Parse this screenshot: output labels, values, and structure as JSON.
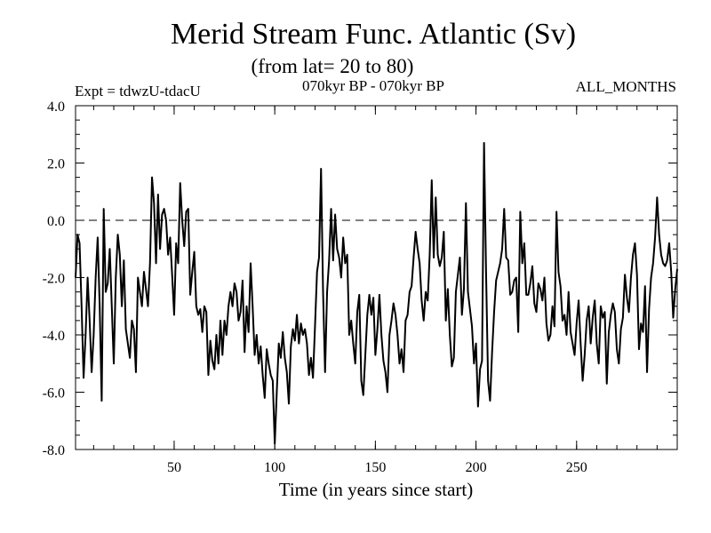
{
  "chart_data": {
    "type": "line",
    "title": "Merid Stream Func. Atlantic (Sv)",
    "subtitle": "(from lat= 20 to 80)",
    "experiment_label": "Expt = tdwzU-tdacU",
    "period_label": "070kyr BP - 070kyr BP",
    "season_label": "ALL_MONTHS",
    "xlabel": "Time (in years since start)",
    "ylabel": "",
    "xlim": [
      1,
      300
    ],
    "ylim": [
      -8.0,
      4.0
    ],
    "xticks": [
      50,
      100,
      150,
      200,
      250
    ],
    "xtick_labels": [
      "50",
      "100",
      "150",
      "200",
      "250"
    ],
    "yticks": [
      -8,
      -6,
      -4,
      -2,
      0,
      2,
      4
    ],
    "ytick_labels": [
      "-8.0",
      "-6.0",
      "-4.0",
      "-2.0",
      "0.0",
      "2.0",
      "4.0"
    ],
    "reference_line": {
      "y": 0.0,
      "style": "dashed"
    },
    "grid": false,
    "series": [
      {
        "x_start": 1,
        "x_step": 1,
        "color": "#000000",
        "values": [
          -2.0,
          -0.5,
          -0.8,
          -3.0,
          -5.5,
          -4.0,
          -2.0,
          -3.5,
          -5.3,
          -4.0,
          -2.0,
          -0.6,
          -3.0,
          -6.3,
          0.4,
          -2.5,
          -2.2,
          -1.0,
          -3.0,
          -5.0,
          -2.0,
          -0.5,
          -1.2,
          -3.0,
          -1.4,
          -3.8,
          -4.3,
          -4.8,
          -3.5,
          -3.8,
          -5.3,
          -2.0,
          -2.5,
          -3.0,
          -1.8,
          -2.4,
          -3.0,
          -1.5,
          1.5,
          0.6,
          -1.5,
          0.9,
          -1.0,
          0.2,
          0.4,
          0.0,
          -1.2,
          -0.6,
          -1.9,
          -3.3,
          -0.8,
          -1.5,
          1.3,
          0.0,
          -0.9,
          0.3,
          0.4,
          -2.6,
          -1.8,
          -1.1,
          -3.0,
          -3.3,
          -3.1,
          -3.9,
          -3.0,
          -3.2,
          -5.4,
          -4.2,
          -4.9,
          -5.2,
          -4.0,
          -5.0,
          -3.5,
          -4.7,
          -3.5,
          -4.0,
          -3.0,
          -2.5,
          -3.0,
          -2.2,
          -2.5,
          -3.5,
          -3.2,
          -2.1,
          -4.6,
          -3.0,
          -3.9,
          -1.5,
          -3.0,
          -4.7,
          -4.0,
          -5.0,
          -4.4,
          -5.4,
          -6.2,
          -4.5,
          -5.0,
          -5.4,
          -5.6,
          -7.8,
          -6.0,
          -4.3,
          -4.8,
          -3.9,
          -4.8,
          -5.3,
          -6.4,
          -4.4,
          -3.8,
          -4.2,
          -3.3,
          -4.3,
          -3.6,
          -4.0,
          -3.8,
          -4.3,
          -5.4,
          -4.8,
          -5.5,
          -3.7,
          -1.8,
          -1.3,
          1.8,
          -2.5,
          -5.3,
          -2.5,
          -1.4,
          0.4,
          -1.4,
          0.2,
          -1.0,
          -1.3,
          -2.0,
          -0.6,
          -1.5,
          -1.2,
          -4.0,
          -3.5,
          -4.3,
          -5.0,
          -3.2,
          -2.6,
          -5.6,
          -6.1,
          -4.7,
          -3.3,
          -2.6,
          -3.3,
          -2.7,
          -4.7,
          -3.8,
          -2.6,
          -4.0,
          -4.9,
          -5.3,
          -6.0,
          -4.0,
          -3.5,
          -2.9,
          -3.3,
          -4.0,
          -5.0,
          -4.5,
          -5.3,
          -3.5,
          -3.3,
          -2.5,
          -2.3,
          -1.3,
          -0.4,
          -1.0,
          -1.5,
          -2.8,
          -3.5,
          -2.5,
          -2.8,
          -1.2,
          1.4,
          -1.3,
          0.8,
          -1.2,
          -1.6,
          -1.3,
          -0.4,
          -3.5,
          -2.4,
          -4.0,
          -5.1,
          -4.8,
          -2.5,
          -1.9,
          -1.3,
          -3.3,
          -2.4,
          0.6,
          -2.5,
          -3.1,
          -3.7,
          -5.0,
          -4.3,
          -6.5,
          -5.2,
          -4.9,
          2.7,
          -1.8,
          -5.6,
          -6.3,
          -4.6,
          -3.2,
          -2.1,
          -1.8,
          -1.5,
          -1.0,
          0.4,
          -1.3,
          -1.4,
          -2.6,
          -2.5,
          -2.1,
          -2.0,
          -3.9,
          0.3,
          -1.5,
          -0.8,
          -2.6,
          -2.6,
          -2.2,
          -1.6,
          -2.9,
          -3.2,
          -2.2,
          -2.4,
          -2.8,
          -2.0,
          -3.6,
          -4.2,
          -4.0,
          -3.0,
          -3.7,
          0.3,
          -1.8,
          -2.3,
          -3.5,
          -3.3,
          -4.0,
          -2.5,
          -3.9,
          -4.3,
          -4.7,
          -3.6,
          -2.8,
          -4.3,
          -5.6,
          -4.7,
          -3.5,
          -3.0,
          -4.3,
          -3.4,
          -2.8,
          -4.3,
          -5.0,
          -3.0,
          -3.4,
          -3.2,
          -5.7,
          -3.9,
          -3.3,
          -2.9,
          -3.2,
          -4.5,
          -5.0,
          -3.8,
          -3.4,
          -1.9,
          -2.7,
          -3.2,
          -2.0,
          -1.2,
          -0.8,
          -1.9,
          -4.5,
          -3.6,
          -3.9,
          -2.3,
          -5.3,
          -3.1,
          -2.0,
          -1.5,
          -0.6,
          0.8,
          -0.5,
          -1.2,
          -1.5,
          -1.6,
          -1.4,
          -0.8,
          -1.8,
          -3.4,
          -2.4,
          -1.7
        ]
      }
    ]
  }
}
